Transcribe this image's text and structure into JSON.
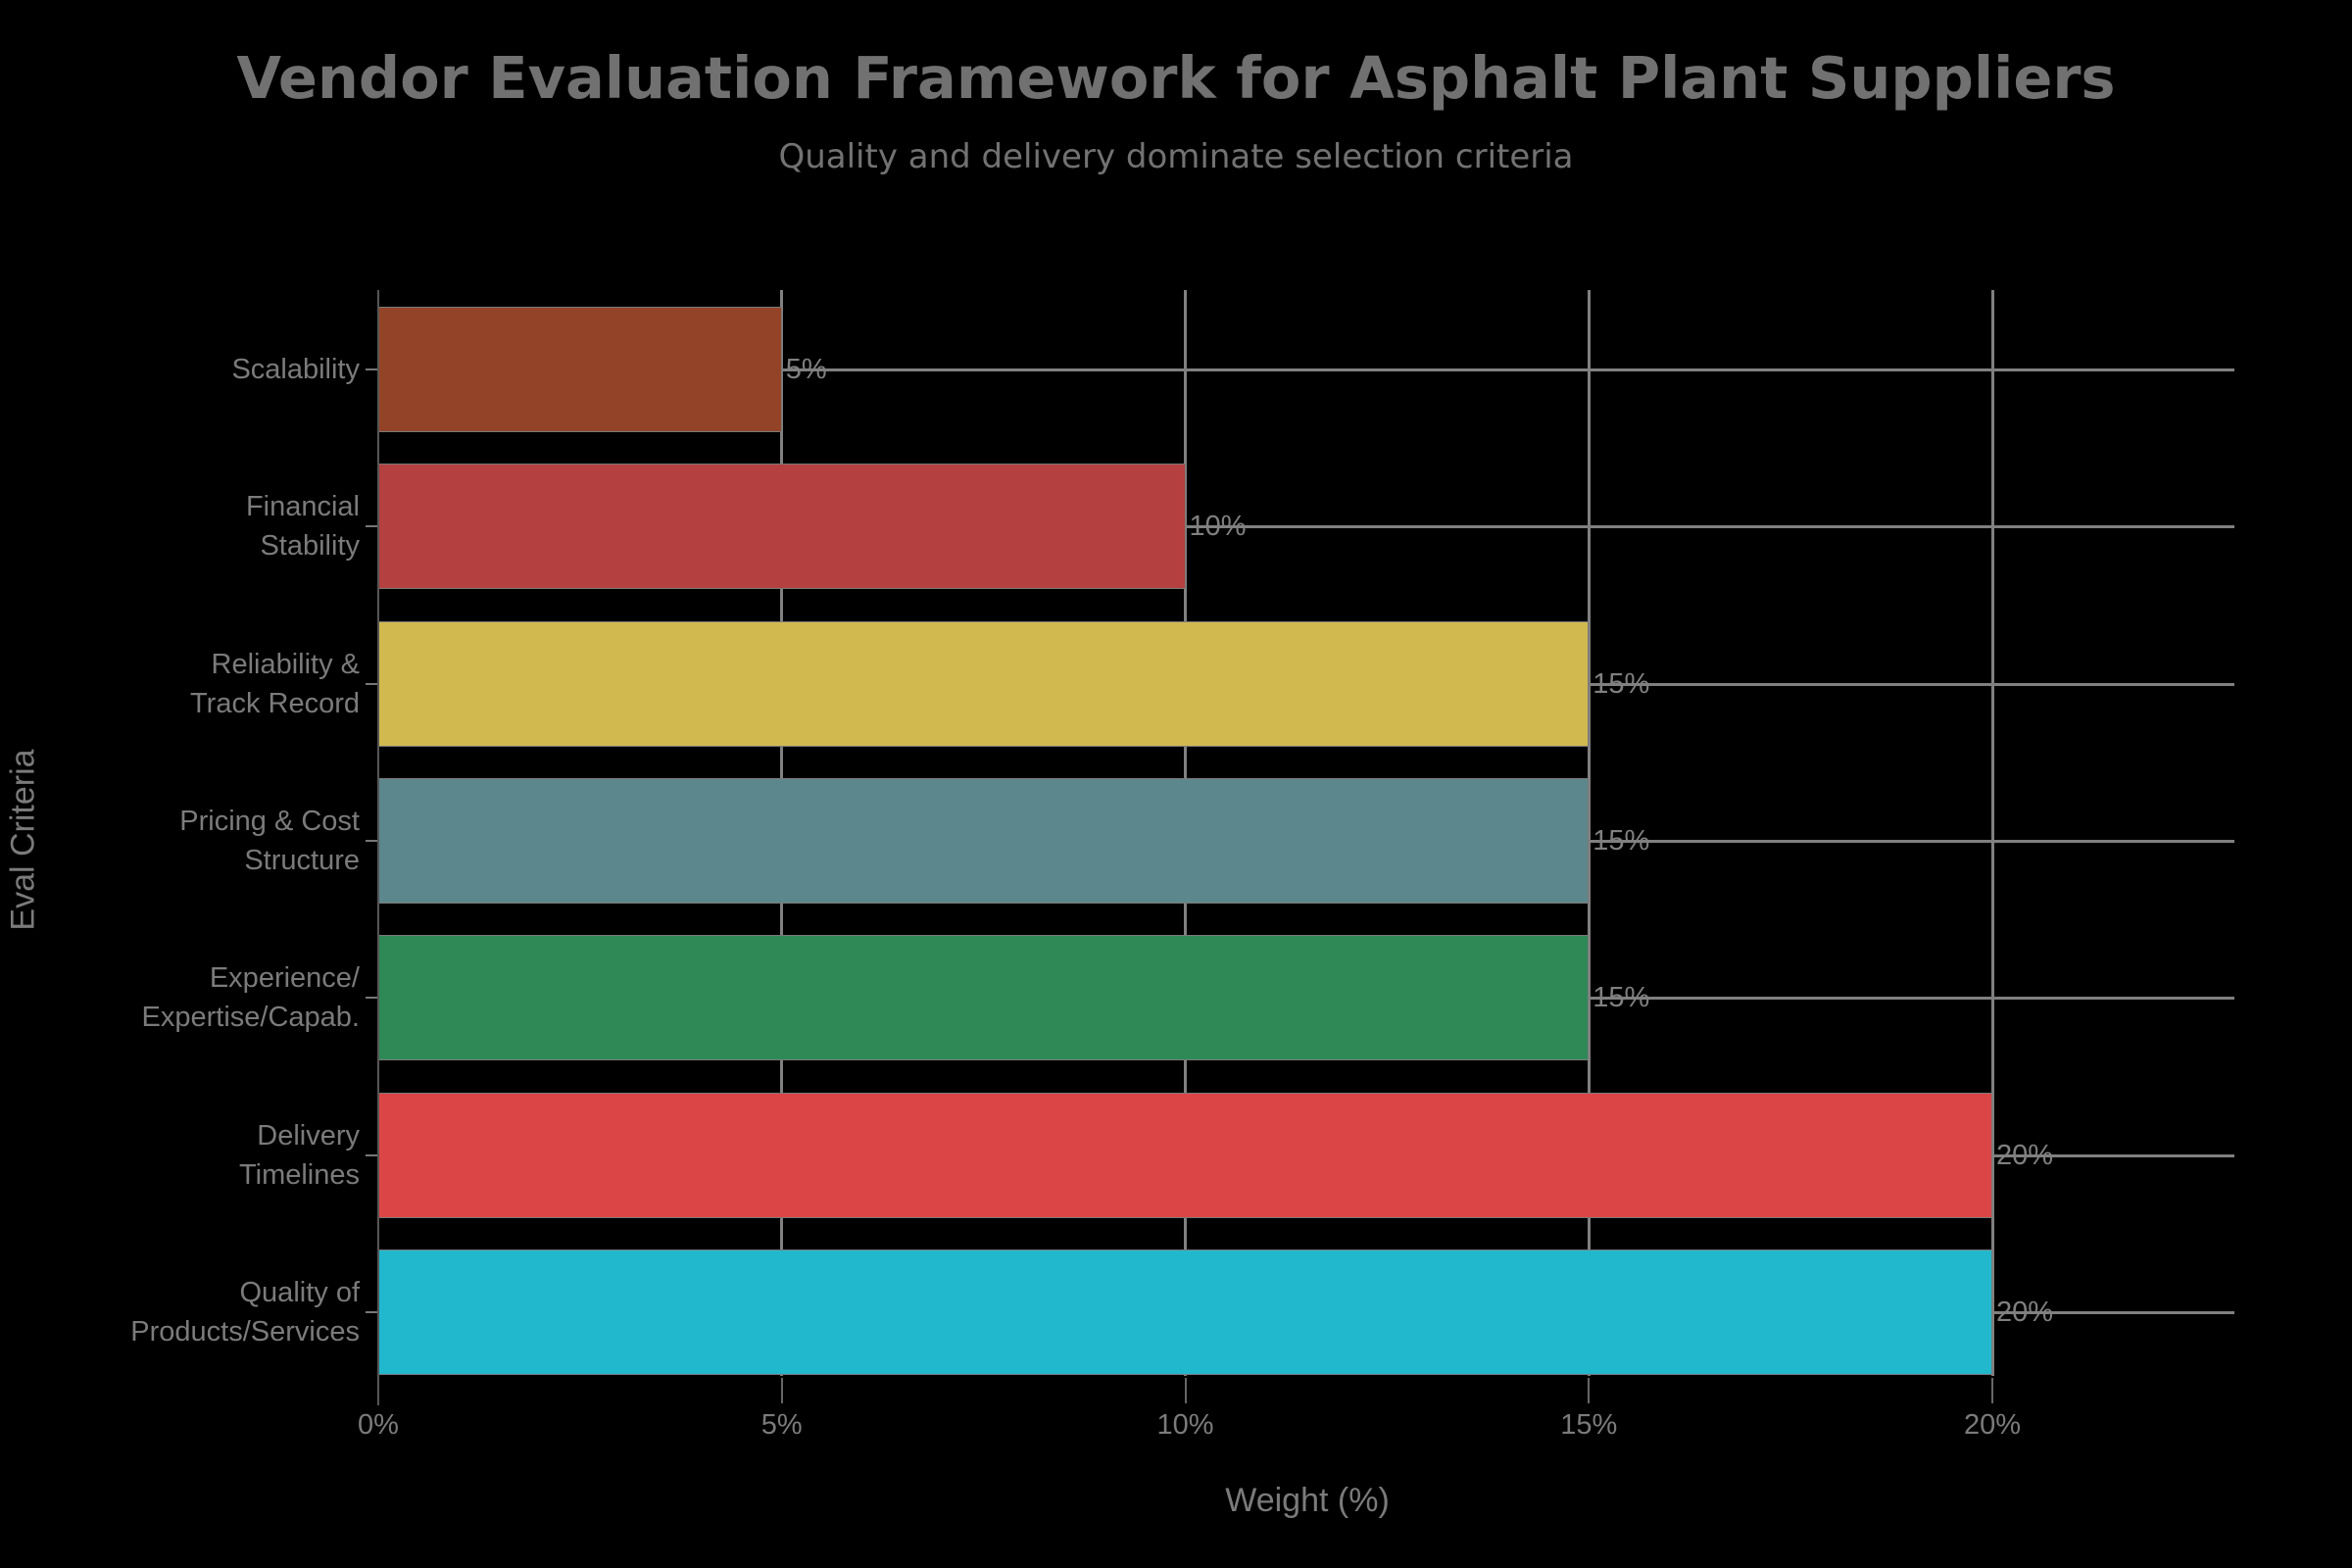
{
  "header": {
    "title": "Vendor Evaluation Framework for Asphalt Plant Suppliers",
    "subtitle": "Quality and delivery dominate selection criteria"
  },
  "axes": {
    "x_title": "Weight (%)",
    "y_title": "Eval Criteria",
    "x_ticks": [
      "0%",
      "5%",
      "10%",
      "15%",
      "20%"
    ]
  },
  "criteria": [
    {
      "line1": "Scalability",
      "line2": "",
      "value": 5,
      "label": "5%",
      "color": "#934428"
    },
    {
      "line1": "Financial",
      "line2": "Stability",
      "value": 10,
      "label": "10%",
      "color": "#b54040"
    },
    {
      "line1": "Reliability &",
      "line2": "Track Record",
      "value": 15,
      "label": "15%",
      "color": "#d2b94f"
    },
    {
      "line1": "Pricing & Cost",
      "line2": "Structure",
      "value": 15,
      "label": "15%",
      "color": "#5c878c"
    },
    {
      "line1": "Experience/",
      "line2": "Expertise/Capab.",
      "value": 15,
      "label": "15%",
      "color": "#2e8956"
    },
    {
      "line1": "Delivery",
      "line2": "Timelines",
      "value": 20,
      "label": "20%",
      "color": "#dc4545"
    },
    {
      "line1": "Quality of",
      "line2": "Products/Services",
      "value": 20,
      "label": "20%",
      "color": "#21b8cd"
    }
  ],
  "chart_data": {
    "type": "bar",
    "orientation": "horizontal",
    "title": "Vendor Evaluation Framework for Asphalt Plant Suppliers",
    "subtitle": "Quality and delivery dominate selection criteria",
    "xlabel": "Weight (%)",
    "ylabel": "Eval Criteria",
    "categories": [
      "Scalability",
      "Financial Stability",
      "Reliability & Track Record",
      "Pricing & Cost Structure",
      "Experience/ Expertise/Capab.",
      "Delivery Timelines",
      "Quality of Products/Services"
    ],
    "values": [
      5,
      10,
      15,
      15,
      15,
      20,
      20
    ],
    "data_labels": [
      "5%",
      "10%",
      "15%",
      "15%",
      "15%",
      "20%",
      "20%"
    ],
    "colors": [
      "#934428",
      "#b54040",
      "#d2b94f",
      "#5c878c",
      "#2e8956",
      "#dc4545",
      "#21b8cd"
    ],
    "xlim": [
      0,
      23
    ],
    "x_ticks": [
      0,
      5,
      10,
      15,
      20
    ],
    "grid": true,
    "legend": "none"
  }
}
